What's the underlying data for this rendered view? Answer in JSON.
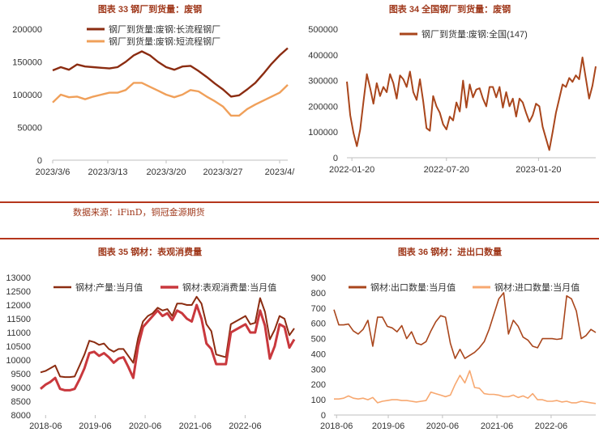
{
  "source_note": "数据来源：iFinD，铜冠金源期货",
  "chart_data": [
    {
      "title": "图表 33 钢厂到货量：废钢",
      "type": "line",
      "x_ticks": [
        "2023/3/6",
        "2023/3/13",
        "2023/3/20",
        "2023/3/27",
        "2023/4/"
      ],
      "y_ticks": [
        "0",
        "50000",
        "100000",
        "150000",
        "200000"
      ],
      "ylim": [
        0,
        200000
      ],
      "series": [
        {
          "name": "钢厂到货量:废钢:长流程钢厂",
          "color": "#8b2c11",
          "values": [
            137000,
            142000,
            138000,
            146000,
            143000,
            142000,
            141000,
            140000,
            142000,
            150000,
            160000,
            166000,
            160000,
            150000,
            142000,
            138000,
            143000,
            144000,
            136000,
            127000,
            117000,
            108000,
            97000,
            99000,
            108000,
            118000,
            132000,
            147000,
            160000,
            171000
          ]
        },
        {
          "name": "钢厂到货量:废钢:短流程钢厂",
          "color": "#f0a05a",
          "values": [
            88000,
            100000,
            96000,
            97000,
            93000,
            97000,
            100000,
            103000,
            103000,
            107000,
            118000,
            118000,
            112000,
            106000,
            100000,
            96000,
            100000,
            107000,
            105000,
            97000,
            90000,
            82000,
            68000,
            68000,
            78000,
            85000,
            91000,
            97000,
            103000,
            115000
          ]
        }
      ]
    },
    {
      "title": "图表 34 全国钢厂到货量：废钢",
      "type": "line",
      "x_ticks": [
        "2022-01-20",
        "2022-07-20",
        "2023-01-20"
      ],
      "y_ticks": [
        "0",
        "100000",
        "200000",
        "300000",
        "400000",
        "500000"
      ],
      "ylim": [
        0,
        500000
      ],
      "series": [
        {
          "name": "钢厂到货量:废钢:全国(147)",
          "color": "#a9461c",
          "values": [
            296000,
            165000,
            95000,
            45000,
            110000,
            220000,
            325000,
            270000,
            210000,
            290000,
            240000,
            275000,
            255000,
            325000,
            290000,
            230000,
            320000,
            305000,
            275000,
            335000,
            255000,
            225000,
            305000,
            220000,
            115000,
            105000,
            240000,
            200000,
            175000,
            130000,
            110000,
            160000,
            145000,
            215000,
            180000,
            300000,
            195000,
            285000,
            235000,
            265000,
            270000,
            230000,
            200000,
            275000,
            275000,
            235000,
            275000,
            195000,
            255000,
            200000,
            230000,
            160000,
            230000,
            215000,
            175000,
            140000,
            165000,
            210000,
            200000,
            120000,
            75000,
            30000,
            100000,
            175000,
            230000,
            285000,
            275000,
            310000,
            295000,
            320000,
            305000,
            390000,
            310000,
            230000,
            280000,
            355000
          ]
        }
      ]
    },
    {
      "title": "图表 35 钢材：表观消费量",
      "type": "line",
      "x_ticks": [
        "2018-06",
        "2019-06",
        "2020-06",
        "2021-06",
        "2022-06"
      ],
      "y_ticks": [
        "8000",
        "8500",
        "9000",
        "9500",
        "10000",
        "10500",
        "11000",
        "11500",
        "12000",
        "12500",
        "13000"
      ],
      "ylim": [
        8000,
        13000
      ],
      "series": [
        {
          "name": "钢材:产量:当月值",
          "color": "#8b2c11",
          "values": [
            9550,
            9600,
            9700,
            9800,
            9400,
            9380,
            9380,
            9400,
            9800,
            10200,
            10700,
            10650,
            10550,
            10600,
            10400,
            10300,
            10400,
            10400,
            10150,
            9900,
            10800,
            11400,
            11600,
            11700,
            11900,
            11800,
            11850,
            11600,
            12050,
            12050,
            12000,
            12000,
            12300,
            12050,
            11300,
            11050,
            10200,
            10150,
            10100,
            11300,
            11400,
            11500,
            11600,
            11300,
            11350,
            12250,
            11750,
            10750,
            11100,
            11600,
            11500,
            10900,
            11150
          ]
        },
        {
          "name": "钢材:表观消费量:当月值",
          "color": "#c9383d",
          "values": [
            8950,
            9100,
            9200,
            9350,
            8950,
            8900,
            8900,
            8950,
            9300,
            9700,
            10250,
            10300,
            10150,
            10250,
            10100,
            9900,
            10050,
            10100,
            9750,
            9350,
            10500,
            11200,
            11400,
            11600,
            11800,
            11600,
            11700,
            11450,
            11800,
            11700,
            11500,
            11400,
            12000,
            11500,
            10600,
            10400,
            9850,
            9850,
            9850,
            11000,
            11100,
            11200,
            11300,
            11000,
            11000,
            11800,
            11250,
            10050,
            10500,
            11300,
            11200,
            10450,
            10750
          ]
        }
      ]
    },
    {
      "title": "图表 36 钢材：进出口数量",
      "type": "line",
      "x_ticks": [
        "2018-06",
        "2019-06",
        "2020-06",
        "2021-06",
        "2022-06"
      ],
      "y_ticks": [
        "0",
        "100",
        "200",
        "300",
        "400",
        "500",
        "600",
        "700",
        "800",
        "900"
      ],
      "ylim": [
        0,
        900
      ],
      "series": [
        {
          "name": "钢材:出口数量:当月值",
          "color": "#a9461c",
          "values": [
            690,
            590,
            590,
            595,
            550,
            530,
            560,
            620,
            450,
            640,
            640,
            580,
            570,
            545,
            585,
            500,
            545,
            470,
            460,
            480,
            550,
            610,
            650,
            640,
            470,
            370,
            430,
            370,
            390,
            410,
            440,
            480,
            560,
            660,
            760,
            800,
            530,
            620,
            580,
            510,
            490,
            450,
            440,
            500,
            500,
            500,
            495,
            500,
            780,
            760,
            680,
            500,
            520,
            560,
            540
          ]
        },
        {
          "name": "钢材:进口数量:当月值",
          "color": "#f7a870",
          "values": [
            105,
            105,
            110,
            125,
            110,
            105,
            110,
            100,
            115,
            80,
            90,
            95,
            100,
            100,
            95,
            95,
            90,
            85,
            90,
            95,
            150,
            140,
            130,
            120,
            130,
            200,
            260,
            210,
            290,
            180,
            175,
            140,
            135,
            135,
            130,
            120,
            120,
            130,
            115,
            125,
            110,
            140,
            100,
            100,
            90,
            90,
            95,
            85,
            90,
            80,
            80,
            90,
            85,
            80,
            75
          ]
        }
      ]
    }
  ]
}
